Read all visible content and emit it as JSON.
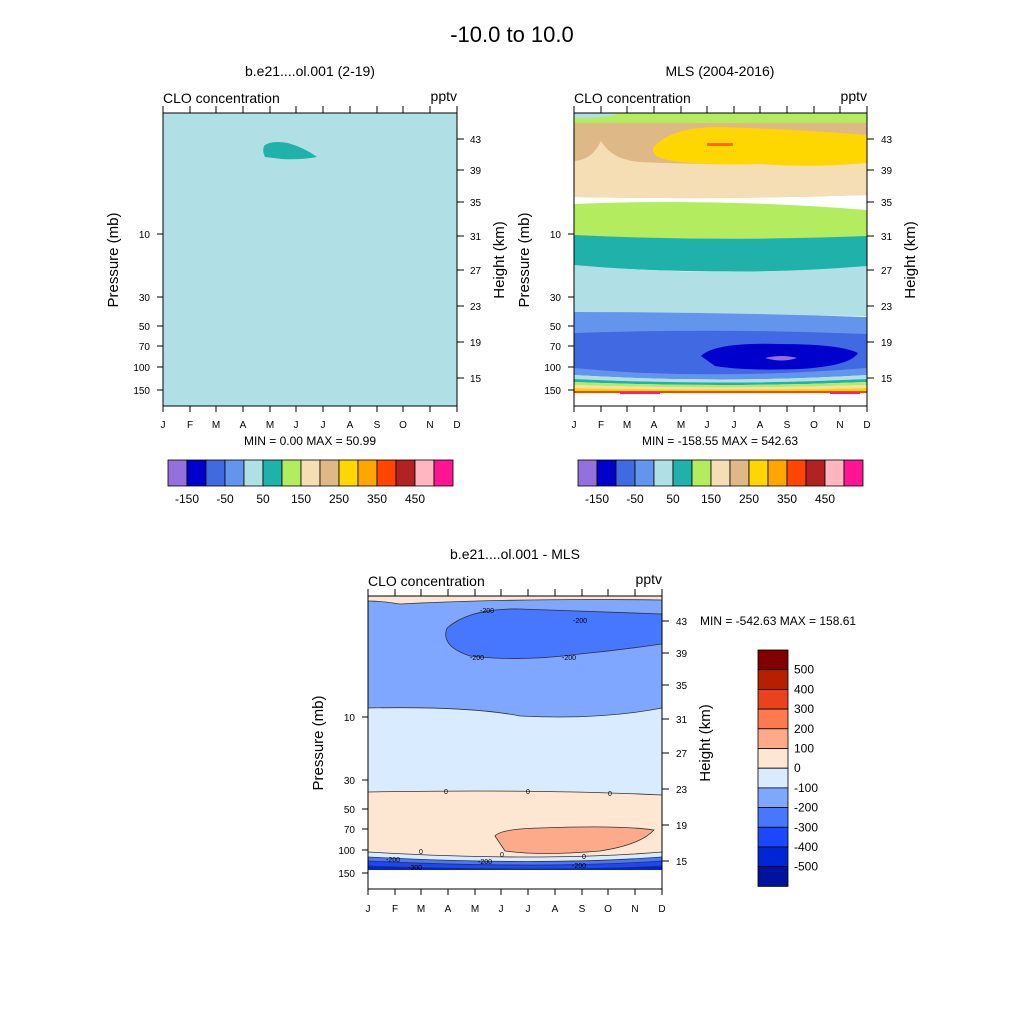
{
  "figure": {
    "main_title": "-10.0 to  10.0"
  },
  "chart_data": [
    {
      "type": "contour",
      "id": "model",
      "title": "b.e21....ol.001 (2-19)",
      "left_label": "CLO concentration",
      "right_label": "pptv",
      "ylabel": "Pressure (mb)",
      "ylabel_right": "Height (km)",
      "x_categories": [
        "J",
        "F",
        "M",
        "A",
        "M",
        "J",
        "J",
        "A",
        "S",
        "O",
        "N",
        "D"
      ],
      "pressure_ticks": [
        "10",
        "30",
        "50",
        "70",
        "100",
        "150"
      ],
      "height_ticks": [
        "43",
        "39",
        "35",
        "31",
        "27",
        "23",
        "19",
        "15"
      ],
      "stats_text": "MIN =   0.00  MAX =  50.99",
      "min": 0.0,
      "max": 50.99,
      "fields": [
        {
          "level": "0 to 50",
          "color": "#b0e0e6",
          "note": "whole domain"
        },
        {
          "level": "50 to 100",
          "color": "#20b2aa",
          "note": "small patch May-Jun near 41 km"
        }
      ]
    },
    {
      "type": "contour",
      "id": "mls",
      "title": "MLS (2004-2016)",
      "left_label": "CLO concentration",
      "right_label": "pptv",
      "ylabel": "Pressure (mb)",
      "ylabel_right": "Height (km)",
      "x_categories": [
        "J",
        "F",
        "M",
        "A",
        "M",
        "J",
        "J",
        "A",
        "S",
        "O",
        "N",
        "D"
      ],
      "pressure_ticks": [
        "10",
        "30",
        "50",
        "70",
        "100",
        "150"
      ],
      "height_ticks": [
        "43",
        "39",
        "35",
        "31",
        "27",
        "23",
        "19",
        "15"
      ],
      "stats_text": "MIN = -158.55  MAX = 542.63",
      "min": -158.55,
      "max": 542.63,
      "bands_top_to_bottom": [
        {
          "level": "100 to 150",
          "color": "#b4ec60"
        },
        {
          "level": "200 to 250",
          "color": "#deb887"
        },
        {
          "level": "250 to 300",
          "color": "#ffd700",
          "note": "peak near 41 km"
        },
        {
          "level": "150 to 200",
          "color": "#f5deb3"
        },
        {
          "level": "100 to 150",
          "color": "#b4ec60"
        },
        {
          "level": "50 to 100",
          "color": "#20b2aa"
        },
        {
          "level": "0 to 50",
          "color": "#b0e0e6"
        },
        {
          "level": "-50 to 0",
          "color": "#6495ed"
        },
        {
          "level": "-100 to -50",
          "color": "#4169e1"
        },
        {
          "level": "-150 to -100",
          "color": "#0000cd",
          "note": "minimum Jun-Oct near 17 km"
        }
      ]
    },
    {
      "type": "contour",
      "id": "diff",
      "title": "b.e21....ol.001 - MLS",
      "left_label": "CLO concentration",
      "right_label": "pptv",
      "ylabel": "Pressure (mb)",
      "ylabel_right": "Height (km)",
      "x_categories": [
        "J",
        "F",
        "M",
        "A",
        "M",
        "J",
        "J",
        "A",
        "S",
        "O",
        "N",
        "D"
      ],
      "pressure_ticks": [
        "10",
        "30",
        "50",
        "70",
        "100",
        "150"
      ],
      "height_ticks": [
        "43",
        "39",
        "35",
        "31",
        "27",
        "23",
        "19",
        "15"
      ],
      "stats_text": "MIN = -542.63  MAX = 158.61",
      "min": -542.63,
      "max": 158.61,
      "contour_line_labels": [
        "-200",
        "-200",
        "-200",
        "-200",
        "0",
        "0",
        "0",
        "0",
        "0",
        "0",
        "-200",
        "-200",
        "-300",
        "-200"
      ],
      "bands_top_to_bottom": [
        {
          "level": "-200 to -100",
          "color": "#7fa7ff"
        },
        {
          "level": "-300 to -200",
          "color": "#4776ff",
          "note": "Apr-Dec near 41 km"
        },
        {
          "level": "-100 to 0",
          "color": "#d9ebff"
        },
        {
          "level": "0 to 100",
          "color": "#fde7d3"
        },
        {
          "level": "100 to 200",
          "color": "#fdaa8a",
          "note": "Jun-Nov near 18 km"
        }
      ]
    }
  ],
  "colorbar_horizontal": {
    "labels": [
      "-150",
      "-50",
      "50",
      "150",
      "250",
      "350",
      "450"
    ],
    "colors": [
      "#9370db",
      "#0000cd",
      "#4169e1",
      "#6495ed",
      "#b0e0e6",
      "#20b2aa",
      "#b4ec60",
      "#f5deb3",
      "#deb887",
      "#ffd700",
      "#ffa500",
      "#ff4500",
      "#b22222",
      "#ffb6c1",
      "#ff1493"
    ]
  },
  "colorbar_vertical": {
    "labels": [
      "500",
      "400",
      "300",
      "200",
      "100",
      "0",
      "-100",
      "-200",
      "-300",
      "-400",
      "-500"
    ],
    "colors": [
      "#800000",
      "#b81e00",
      "#e8431c",
      "#fd7a4e",
      "#fdaa8a",
      "#fde7d3",
      "#d9ebff",
      "#7fa7ff",
      "#4776ff",
      "#1b48ff",
      "#0025d4",
      "#00129e"
    ]
  }
}
